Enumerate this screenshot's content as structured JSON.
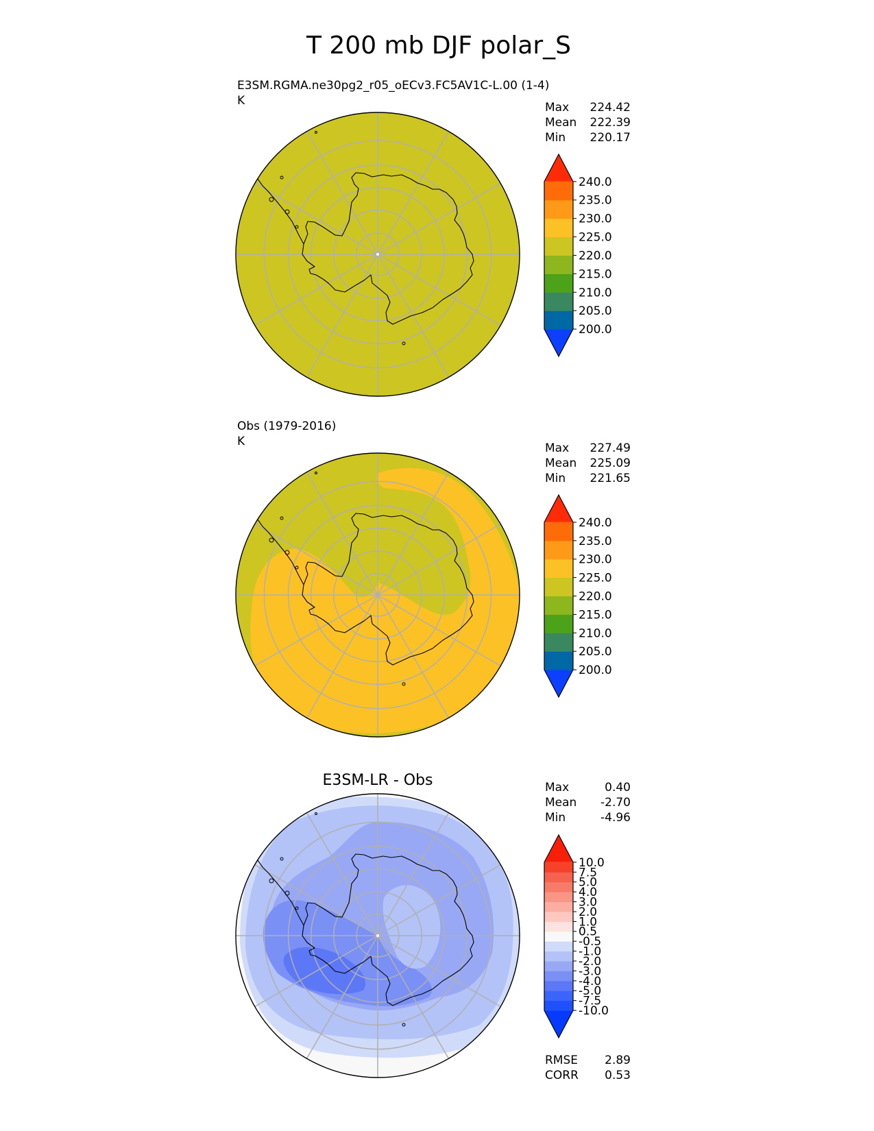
{
  "figure": {
    "title": "T 200 mb DJF polar_S"
  },
  "colors": {
    "grid": "#b0b0b0",
    "coast": "#000000",
    "border": "#000000"
  },
  "chart_data": [
    {
      "type": "heatmap",
      "id": "model",
      "title_left": "E3SM.RGMA.ne30pg2_r05_oECv3.FC5AV1C-L.00 (1-4)",
      "units": "K",
      "stats": [
        {
          "label": "Max",
          "value": "224.42"
        },
        {
          "label": "Mean",
          "value": "222.39"
        },
        {
          "label": "Min",
          "value": "220.17"
        }
      ],
      "colorbar": {
        "bounds": [
          195,
          200,
          205,
          210,
          215,
          220,
          225,
          230,
          235,
          240,
          245
        ],
        "colors": [
          "#0c3fff",
          "#0068a4",
          "#3a8860",
          "#4ca31a",
          "#8eb61e",
          "#cdc521",
          "#fbc125",
          "#fe9a18",
          "#fe6b09",
          "#ff2b06"
        ],
        "tick_labels": [
          "200.0",
          "205.0",
          "210.0",
          "215.0",
          "220.0",
          "225.0",
          "230.0",
          "235.0",
          "240.0"
        ],
        "extend": "both"
      },
      "field_regions": [
        {
          "description": "uniform field 220-225 K over entire domain",
          "level": "220-225"
        }
      ]
    },
    {
      "type": "heatmap",
      "id": "obs",
      "title_left": "Obs (1979-2016)",
      "units": "K",
      "stats": [
        {
          "label": "Max",
          "value": "227.49"
        },
        {
          "label": "Mean",
          "value": "225.09"
        },
        {
          "label": "Min",
          "value": "221.65"
        }
      ],
      "colorbar": {
        "bounds": [
          195,
          200,
          205,
          210,
          215,
          220,
          225,
          230,
          235,
          240,
          245
        ],
        "colors": [
          "#0c3fff",
          "#0068a4",
          "#3a8860",
          "#4ca31a",
          "#8eb61e",
          "#cdc521",
          "#fbc125",
          "#fe9a18",
          "#fe6b09",
          "#ff2b06"
        ],
        "tick_labels": [
          "200.0",
          "205.0",
          "210.0",
          "215.0",
          "220.0",
          "225.0",
          "230.0",
          "235.0",
          "240.0"
        ],
        "extend": "both"
      },
      "field_regions": [
        {
          "description": "background 220-225 K",
          "level": "220-225"
        },
        {
          "description": "warm ring 225-230 K around the continent, open to the northwest",
          "level": "225-230"
        }
      ]
    },
    {
      "type": "heatmap",
      "id": "diff",
      "title_center": "E3SM-LR - Obs",
      "stats": [
        {
          "label": "Max",
          "value": "0.40"
        },
        {
          "label": "Mean",
          "value": "-2.70"
        },
        {
          "label": "Min",
          "value": "-4.96"
        }
      ],
      "colorbar": {
        "bounds": [
          -12.5,
          -10,
          -7.5,
          -5,
          -4,
          -3,
          -2,
          -1,
          -0.5,
          0.5,
          1,
          2,
          3,
          4,
          5,
          7.5,
          10,
          12.5
        ],
        "colors": [
          "#053aff",
          "#1e50fc",
          "#3d64fa",
          "#5c78f7",
          "#7a90f5",
          "#98a8f4",
          "#b3c2f7",
          "#d0dbfa",
          "#f8f8f8",
          "#fce3e1",
          "#fcc8c0",
          "#fbaea1",
          "#f99584",
          "#f77b68",
          "#f5634e",
          "#f54229",
          "#f71f0a"
        ],
        "tick_labels": [
          "-10.0",
          "-7.5",
          "-5.0",
          "-4.0",
          "-3.0",
          "-2.0",
          "-1.0",
          "-0.5",
          "0.5",
          "1.0",
          "2.0",
          "3.0",
          "4.0",
          "5.0",
          "7.5",
          "10.0"
        ],
        "extend": "both"
      },
      "field_regions": [
        {
          "description": "outer margin near 0 K",
          "level": "-0.5-0.5"
        },
        {
          "description": "broad -1 to -2 K",
          "level": "-2--1"
        },
        {
          "description": "-2 to -3 K over most of the disk",
          "level": "-3--2"
        },
        {
          "description": "-3 to -4 K band",
          "level": "-4--3"
        },
        {
          "description": "-4 to -5 K core west of the peninsula",
          "level": "-5--4"
        }
      ],
      "bottom_stats": [
        {
          "label": "RMSE",
          "value": "2.89"
        },
        {
          "label": "CORR",
          "value": "0.53"
        }
      ]
    }
  ]
}
